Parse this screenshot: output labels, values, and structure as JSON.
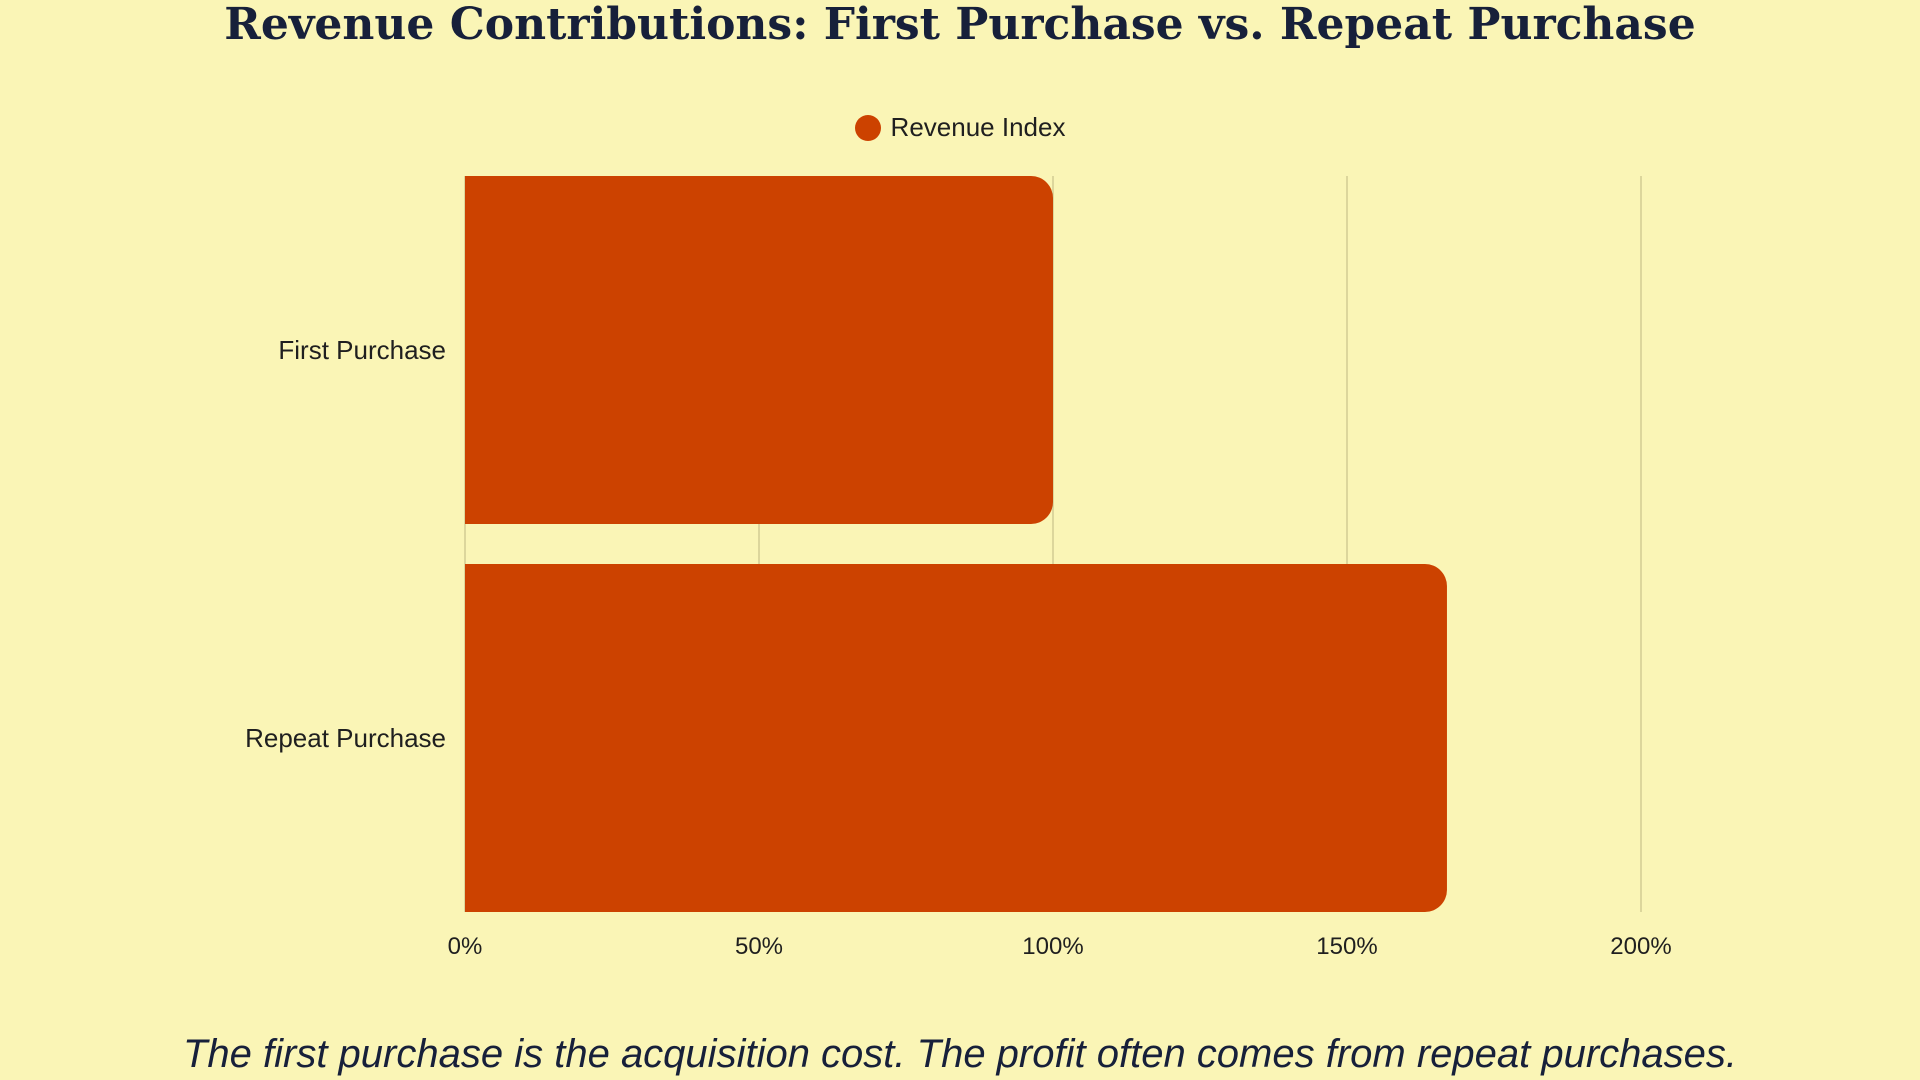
{
  "chart_data": {
    "type": "bar",
    "orientation": "horizontal",
    "title": "Revenue Contributions: First Purchase vs. Repeat Purchase",
    "categories": [
      "First Purchase",
      "Repeat Purchase"
    ],
    "series": [
      {
        "name": "Revenue Index",
        "color": "#cc4200",
        "values": [
          100,
          167
        ]
      }
    ],
    "xlim": [
      0,
      200
    ],
    "x_ticks": [
      0,
      50,
      100,
      150,
      200
    ],
    "x_tick_labels": [
      "0%",
      "50%",
      "100%",
      "150%",
      "200%"
    ],
    "grid": true,
    "legend_position": "top-center",
    "caption": "The first purchase is the acquisition cost. The profit often comes from repeat purchases."
  },
  "colors": {
    "background": "#faf5b6",
    "bar": "#cc4200",
    "grid": "#d2cc94",
    "title": "#17203a"
  }
}
